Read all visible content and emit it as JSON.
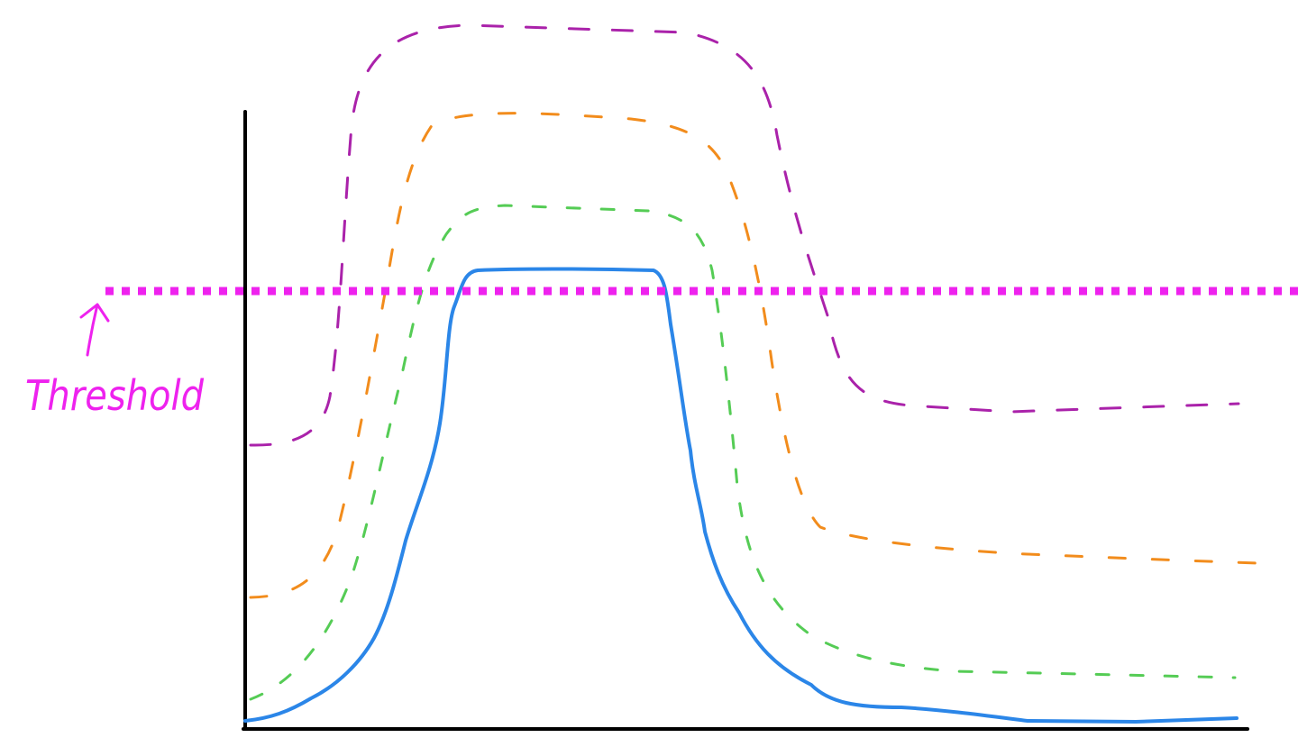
{
  "threshold": {
    "label": "Threshold",
    "color": "#ee22ee"
  },
  "axes": {
    "color": "#000000"
  },
  "curves": [
    {
      "id": "blue-solid",
      "color": "#2b86e8",
      "style": "solid"
    },
    {
      "id": "green-dashed",
      "color": "#55cc55",
      "style": "dashed"
    },
    {
      "id": "orange-dashed",
      "color": "#f28c1c",
      "style": "dashed"
    },
    {
      "id": "purple-dashed",
      "color": "#aa22aa",
      "style": "dashed"
    }
  ]
}
